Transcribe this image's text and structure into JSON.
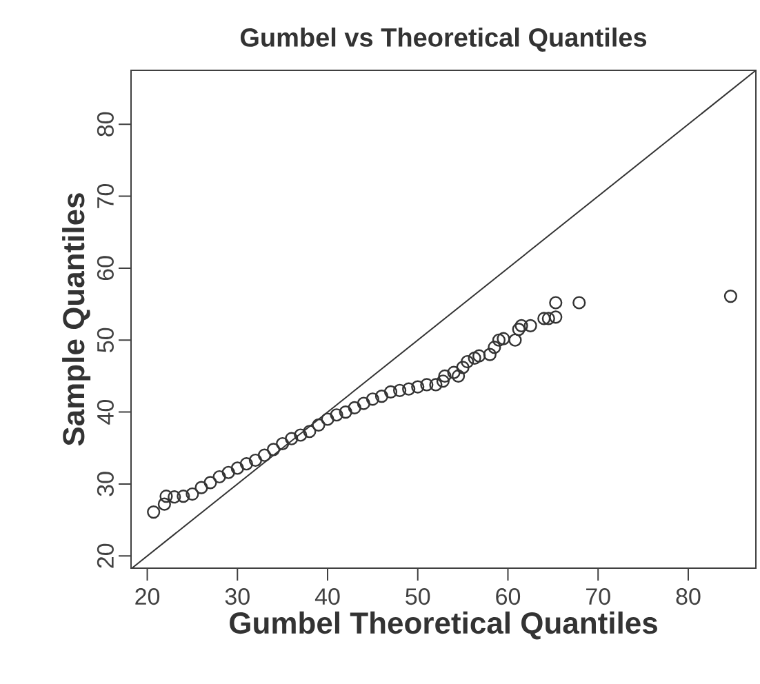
{
  "chart_data": {
    "type": "scatter",
    "title": "Gumbel vs Theoretical Quantiles",
    "xlabel": "Gumbel Theoretical Quantiles",
    "ylabel": "Sample Quantiles",
    "xlim": [
      18.2,
      87.5
    ],
    "ylim": [
      18.3,
      87.5
    ],
    "xticks": [
      20,
      30,
      40,
      50,
      60,
      70,
      80
    ],
    "yticks": [
      20,
      30,
      40,
      50,
      60,
      70,
      80
    ],
    "series": [
      {
        "marker": "circle",
        "color": "#333333",
        "x": [
          20.7,
          21.9,
          22.1,
          23,
          24,
          25,
          26,
          27,
          28,
          29,
          30,
          31,
          32,
          33,
          34,
          35,
          36,
          37,
          38,
          39,
          40,
          41,
          42,
          43,
          44,
          45,
          46,
          47,
          48,
          49,
          50,
          51,
          52,
          52.8,
          53,
          54,
          54.5,
          55,
          55.5,
          56.3,
          56.8,
          58,
          58.5,
          59,
          59.5,
          60.8,
          61.2,
          61.5,
          62.5,
          64,
          64.5,
          65.3,
          65.3,
          67.9,
          84.7
        ],
        "values": [
          26.1,
          27.2,
          28.3,
          28.2,
          28.3,
          28.6,
          29.5,
          30.2,
          31,
          31.6,
          32.2,
          32.8,
          33.3,
          34,
          34.8,
          35.6,
          36.3,
          36.8,
          37.3,
          38.2,
          39,
          39.6,
          40,
          40.6,
          41.2,
          41.8,
          42.2,
          42.8,
          43,
          43.2,
          43.5,
          43.8,
          43.8,
          44.3,
          45,
          45.5,
          45,
          46.2,
          47,
          47.5,
          47.8,
          48,
          49,
          50,
          50.2,
          50,
          51.5,
          52,
          52,
          53,
          53,
          53.2,
          55.2,
          55.2,
          56.1
        ]
      },
      {
        "type": "line",
        "marker": "none",
        "color": "#333333",
        "x": [
          18.3,
          87.5
        ],
        "values": [
          18.3,
          87.5
        ]
      }
    ]
  }
}
